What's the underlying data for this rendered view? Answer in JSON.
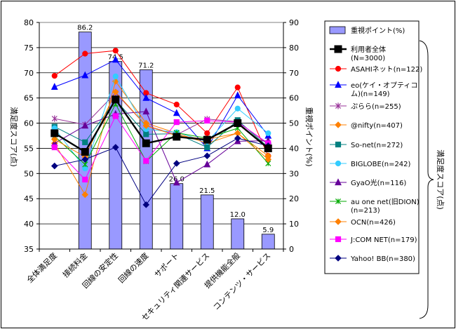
{
  "chart_data": {
    "type": "bar+line",
    "categories": [
      "全体満足度",
      "接続料金",
      "回線の安定性",
      "回線の速度",
      "サポート",
      "セキュリティ関連サービス",
      "提供機能全般",
      "コンテンツ・サービス"
    ],
    "y_left": {
      "label": "満足度スコア(点)",
      "lim": [
        35,
        80
      ],
      "ticks": [
        "35",
        "40",
        "45",
        "50",
        "55",
        "60",
        "65",
        "70",
        "75",
        "80"
      ]
    },
    "y_right": {
      "label": "重視ポイント(%)",
      "lim": [
        0,
        90
      ],
      "ticks": [
        "0",
        "10",
        "20",
        "30",
        "40",
        "50",
        "60",
        "70",
        "80",
        "90"
      ]
    },
    "right_side_label": "満足度スコア(点)",
    "bars": {
      "name": "重視ポイント(%)",
      "color": "#9999ff",
      "values": [
        null,
        86.2,
        74.5,
        71.2,
        26.0,
        21.5,
        12.0,
        5.9
      ],
      "labels": [
        "",
        "86.2",
        "74.5",
        "71.2",
        "26.0",
        "21.5",
        "12.0",
        "5.9"
      ]
    },
    "series": [
      {
        "name": "利用者全体(N=3000)",
        "color": "#000000",
        "marker": "square",
        "bold": true,
        "values": [
          58.0,
          54.3,
          64.7,
          56.0,
          57.3,
          56.7,
          60.0,
          55.0
        ]
      },
      {
        "name": "ASAHIネット(n=122)",
        "color": "#ff0000",
        "marker": "circle",
        "values": [
          69.4,
          73.8,
          74.4,
          66.0,
          63.7,
          58.0,
          67.1,
          53.5
        ]
      },
      {
        "name": "eo(ケイ・オプティコム)(n=149)",
        "color": "#0000ff",
        "marker": "triangle",
        "values": [
          67.2,
          69.5,
          72.6,
          65.0,
          62.0,
          55.0,
          65.5,
          57.5
        ]
      },
      {
        "name": "ぷらら(n=255)",
        "color": "#993399",
        "marker": "star",
        "values": [
          60.9,
          59.7,
          66.0,
          59.5,
          57.7,
          60.8,
          60.3,
          55.8
        ]
      },
      {
        "name": "@nifty(n=407)",
        "color": "#ff8000",
        "marker": "diamond",
        "values": [
          56.0,
          45.8,
          68.3,
          60.0,
          58.0,
          56.0,
          58.0,
          53.5
        ]
      },
      {
        "name": "So-net(n=272)",
        "color": "#008080",
        "marker": "square",
        "values": [
          59.3,
          56.2,
          64.6,
          57.8,
          57.9,
          55.2,
          60.6,
          55.2
        ]
      },
      {
        "name": "BIGLOBE(n=242)",
        "color": "#33ccff",
        "marker": "circle",
        "values": [
          59.0,
          51.0,
          69.3,
          58.8,
          58.2,
          56.3,
          62.9,
          58.0
        ]
      },
      {
        "name": "GyaO光(n=116)",
        "color": "#660099",
        "marker": "triangle",
        "values": [
          56.0,
          59.5,
          61.8,
          62.3,
          48.2,
          51.8,
          56.4,
          56.5
        ]
      },
      {
        "name": "au one net(旧DION)(n=213)",
        "color": "#00aa00",
        "marker": "x",
        "values": [
          57.4,
          51.8,
          63.8,
          52.4,
          58.1,
          57.0,
          59.0,
          52.0
        ]
      },
      {
        "name": "OCN(n=426)",
        "color": "#ff8000",
        "marker": "diamond",
        "values": [
          56.8,
          53.3,
          66.2,
          59.5,
          57.5,
          56.8,
          58.0,
          52.8
        ]
      },
      {
        "name": "J:COM NET(n=179)",
        "color": "#ff00ff",
        "marker": "square",
        "values": [
          55.2,
          48.8,
          61.4,
          52.5,
          60.2,
          60.5,
          60.2,
          56.0
        ]
      },
      {
        "name": "Yahoo! BB(n=380)",
        "color": "#000080",
        "marker": "diamond",
        "values": [
          51.5,
          52.8,
          55.2,
          43.8,
          52.0,
          53.5,
          57.0,
          55.5
        ]
      }
    ]
  }
}
